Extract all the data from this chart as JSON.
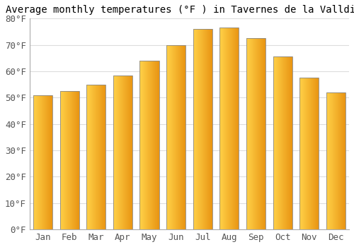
{
  "title": "Average monthly temperatures (°F ) in Tavernes de la Valldigna",
  "months": [
    "Jan",
    "Feb",
    "Mar",
    "Apr",
    "May",
    "Jun",
    "Jul",
    "Aug",
    "Sep",
    "Oct",
    "Nov",
    "Dec"
  ],
  "values": [
    51,
    52.5,
    55,
    58.5,
    64,
    70,
    76,
    76.5,
    72.5,
    65.5,
    57.5,
    52
  ],
  "bar_color_left": "#FFD966",
  "bar_color_right": "#E8960A",
  "bar_edge_color": "#888888",
  "background_color": "#ffffff",
  "plot_bg_color": "#ffffff",
  "grid_color": "#dddddd",
  "ylim": [
    0,
    80
  ],
  "yticks": [
    0,
    10,
    20,
    30,
    40,
    50,
    60,
    70,
    80
  ],
  "ytick_labels": [
    "0°F",
    "10°F",
    "20°F",
    "30°F",
    "40°F",
    "50°F",
    "60°F",
    "70°F",
    "80°F"
  ],
  "title_fontsize": 10,
  "tick_fontsize": 9,
  "figsize": [
    5.0,
    3.5
  ],
  "dpi": 100
}
